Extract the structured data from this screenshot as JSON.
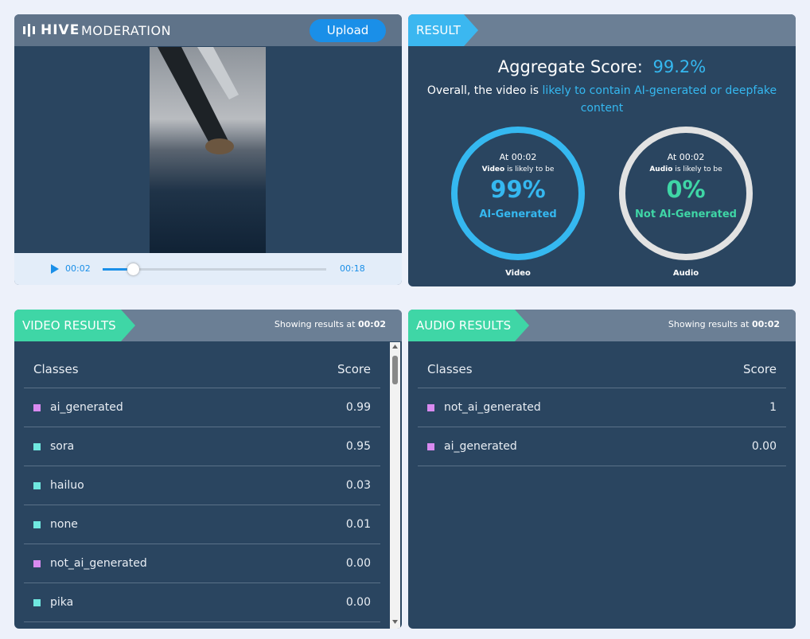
{
  "header": {
    "brand_bold": "HIVE",
    "brand_light": "MODERATION",
    "upload": "Upload"
  },
  "player": {
    "current": "00:02",
    "duration": "00:18"
  },
  "result": {
    "tab": "RESULT",
    "aggregate_label": "Aggregate Score:",
    "aggregate_value": "99.2%",
    "summary_prefix": "Overall, the video is",
    "summary_highlight": "likely to contain AI-generated or deepfake content",
    "gauges": [
      {
        "at": "At 00:02",
        "subject": "Video",
        "likely": "is likely to be",
        "percent": "99%",
        "verdict": "AI-Generated",
        "caption": "Video",
        "color": "#35b8f0",
        "ring": "#35b8f0"
      },
      {
        "at": "At 00:02",
        "subject": "Audio",
        "likely": "is likely to be",
        "percent": "0%",
        "verdict": "Not AI-Generated",
        "caption": "Audio",
        "color": "#3fd6a6",
        "ring": "#e2e2e2"
      }
    ]
  },
  "video_results": {
    "tab": "VIDEO RESULTS",
    "showing": "Showing results at",
    "time": "00:02",
    "headers": [
      "Classes",
      "Score"
    ],
    "rows": [
      {
        "class": "ai_generated",
        "score": "0.99",
        "color": "#d98af0"
      },
      {
        "class": "sora",
        "score": "0.95",
        "color": "#6fe8e0"
      },
      {
        "class": "hailuo",
        "score": "0.03",
        "color": "#6fe8e0"
      },
      {
        "class": "none",
        "score": "0.01",
        "color": "#6fe8e0"
      },
      {
        "class": "not_ai_generated",
        "score": "0.00",
        "color": "#d98af0"
      },
      {
        "class": "pika",
        "score": "0.00",
        "color": "#6fe8e0"
      }
    ]
  },
  "audio_results": {
    "tab": "AUDIO RESULTS",
    "showing": "Showing results at",
    "time": "00:02",
    "headers": [
      "Classes",
      "Score"
    ],
    "rows": [
      {
        "class": "not_ai_generated",
        "score": "1",
        "color": "#d98af0"
      },
      {
        "class": "ai_generated",
        "score": "0.00",
        "color": "#d98af0"
      }
    ]
  }
}
